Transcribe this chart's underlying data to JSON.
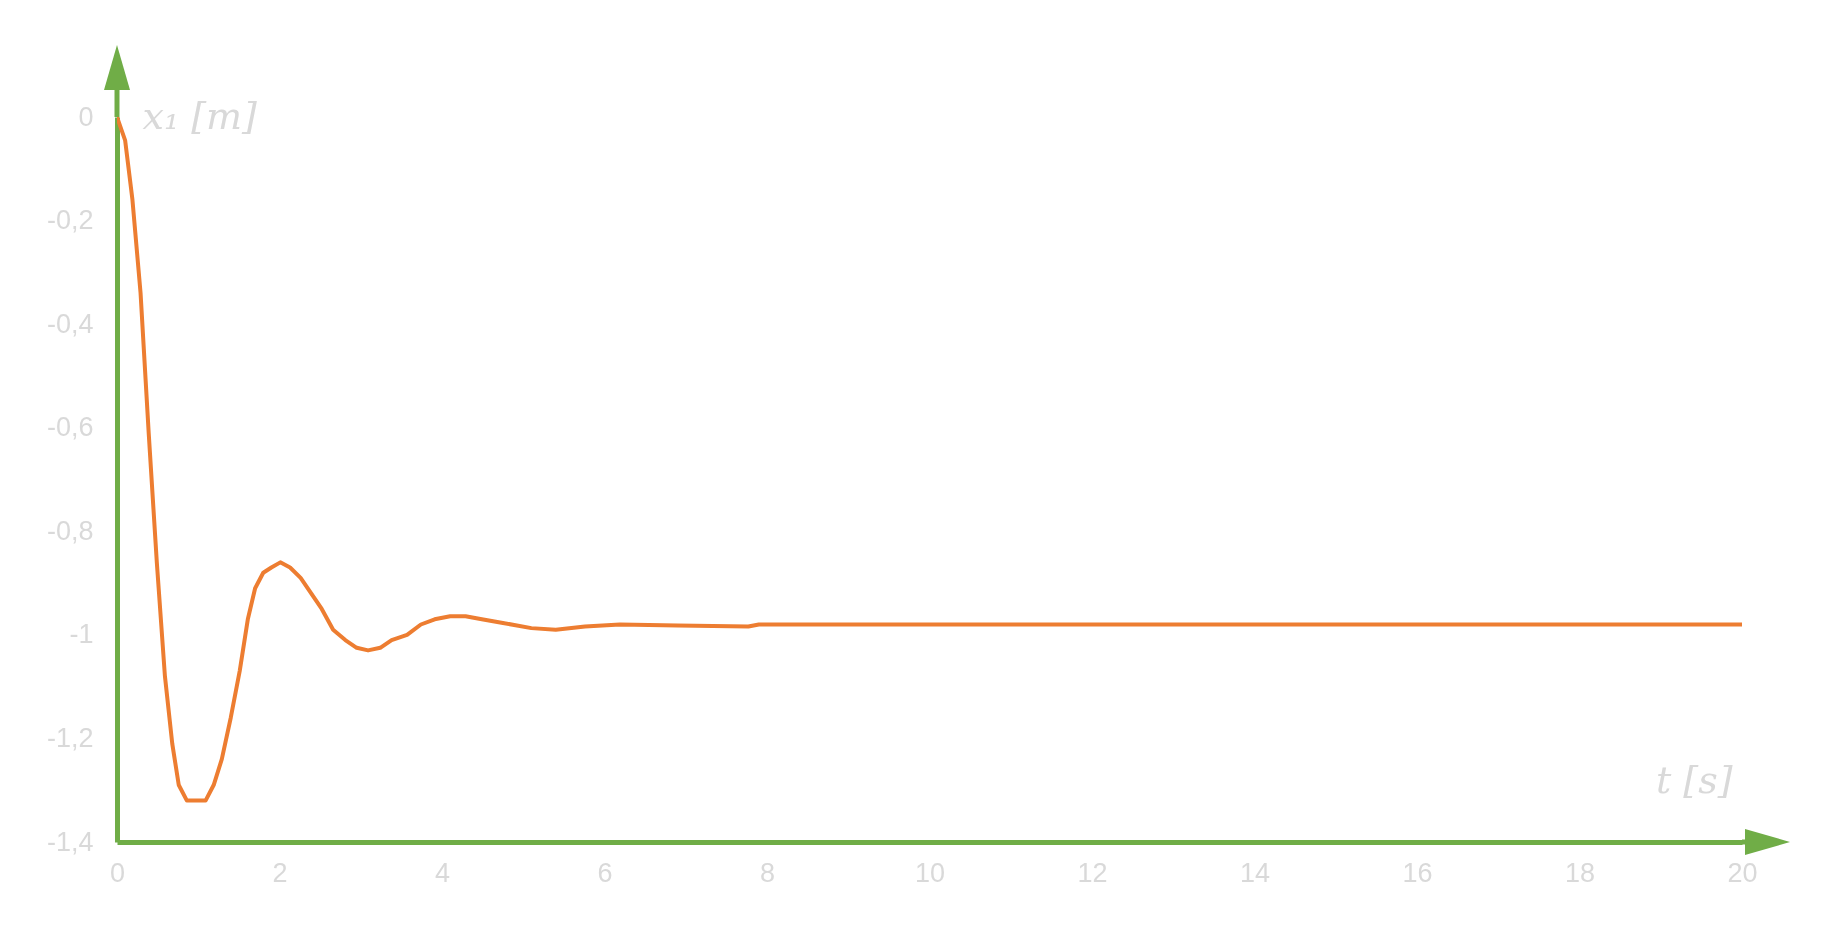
{
  "chart_data": {
    "type": "line",
    "xlabel": "t [s]",
    "ylabel": "x₁ [m]",
    "x": [
      0,
      0.1,
      0.19,
      0.29,
      0.39,
      0.49,
      0.59,
      0.68,
      0.76,
      0.86,
      0.98,
      1.09,
      1.19,
      1.29,
      1.4,
      1.51,
      1.61,
      1.7,
      1.8,
      1.9,
      2.01,
      2.13,
      2.26,
      2.39,
      2.52,
      2.66,
      2.81,
      2.95,
      3.09,
      3.24,
      3.38,
      3.57,
      3.74,
      3.91,
      4.1,
      4.29,
      4.49,
      4.75,
      5.1,
      5.4,
      5.76,
      6.19,
      6.9,
      7.77,
      7.9,
      10,
      14,
      20
    ],
    "series": [
      {
        "color": "#ed7d31",
        "values": [
          0,
          -0.045,
          -0.16,
          -0.34,
          -0.61,
          -0.86,
          -1.08,
          -1.21,
          -1.29,
          -1.32,
          -1.32,
          -1.32,
          -1.29,
          -1.24,
          -1.16,
          -1.07,
          -0.97,
          -0.91,
          -0.88,
          -0.87,
          -0.86,
          -0.87,
          -0.89,
          -0.92,
          -0.95,
          -0.99,
          -1.01,
          -1.025,
          -1.03,
          -1.025,
          -1.01,
          -1.0,
          -0.98,
          -0.97,
          -0.964,
          -0.964,
          -0.97,
          -0.977,
          -0.987,
          -0.99,
          -0.984,
          -0.98,
          -0.982,
          -0.984,
          -0.98,
          -0.98,
          -0.98,
          -0.98
        ]
      }
    ],
    "xlim": [
      0,
      20
    ],
    "xticks": [
      0,
      2,
      4,
      6,
      8,
      10,
      12,
      14,
      16,
      18,
      20
    ],
    "ylim": [
      -1.4,
      0
    ],
    "yticks": [
      {
        "value": 0,
        "label": "0"
      },
      {
        "value": -0.2,
        "label": "-0,2"
      },
      {
        "value": -0.4,
        "label": "-0,4"
      },
      {
        "value": -0.6,
        "label": "-0,6"
      },
      {
        "value": -0.8,
        "label": "-0,8"
      },
      {
        "value": -1,
        "label": "-1"
      },
      {
        "value": -1.2,
        "label": "-1,2"
      },
      {
        "value": -1.4,
        "label": "-1,4"
      }
    ],
    "grid": false,
    "marker": "none",
    "line_style": "solid"
  }
}
